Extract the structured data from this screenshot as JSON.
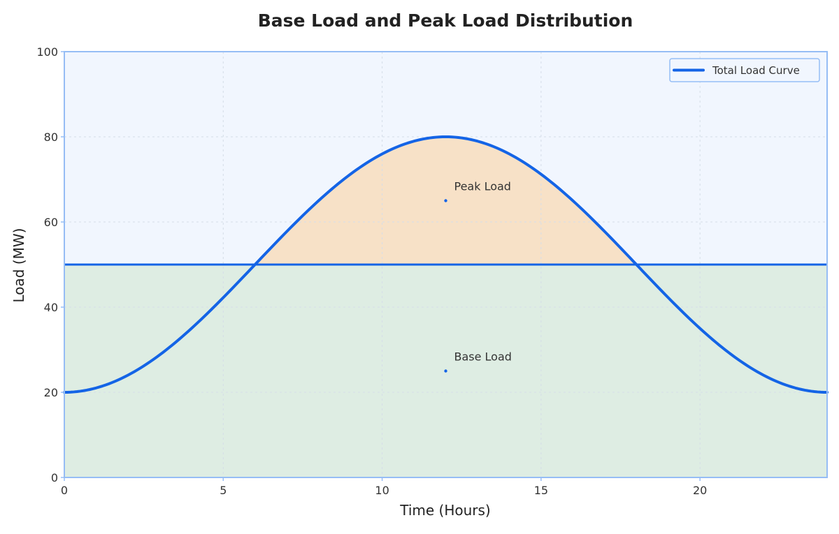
{
  "chart_data": {
    "type": "area",
    "title": "Base Load and Peak Load Distribution",
    "xlabel": "Time (Hours)",
    "ylabel": "Load (MW)",
    "xlim": [
      0,
      24
    ],
    "ylim": [
      0,
      100
    ],
    "x_ticks": [
      0,
      5,
      10,
      15,
      20
    ],
    "y_ticks": [
      0,
      20,
      40,
      60,
      80,
      100
    ],
    "grid": true,
    "legend_position": "top-right",
    "base_load_level": 50,
    "series": [
      {
        "name": "Total Load Curve",
        "color": "#1464e6",
        "x": [
          0,
          1,
          2,
          3,
          4,
          5,
          6,
          7,
          8,
          9,
          10,
          11,
          12,
          13,
          14,
          15,
          16,
          17,
          18,
          19,
          20,
          21,
          22,
          23,
          24
        ],
        "y": [
          20.0,
          21.0,
          24.0,
          28.8,
          35.0,
          42.2,
          50.0,
          57.8,
          65.0,
          71.2,
          76.0,
          79.0,
          80.0,
          79.0,
          76.0,
          71.2,
          65.0,
          57.8,
          50.0,
          42.2,
          35.0,
          28.8,
          24.0,
          21.0,
          20.0
        ]
      }
    ],
    "annotations": [
      {
        "text": "Peak Load",
        "x": 12,
        "y": 65
      },
      {
        "text": "Base Load",
        "x": 12,
        "y": 25
      }
    ],
    "colors": {
      "background_upper": "#f1f6fe",
      "base_fill": "#deede3",
      "peak_fill": "#f7e1c7",
      "line": "#1464e6",
      "frame": "#96bdf5",
      "grid": "#d5dde8"
    }
  }
}
